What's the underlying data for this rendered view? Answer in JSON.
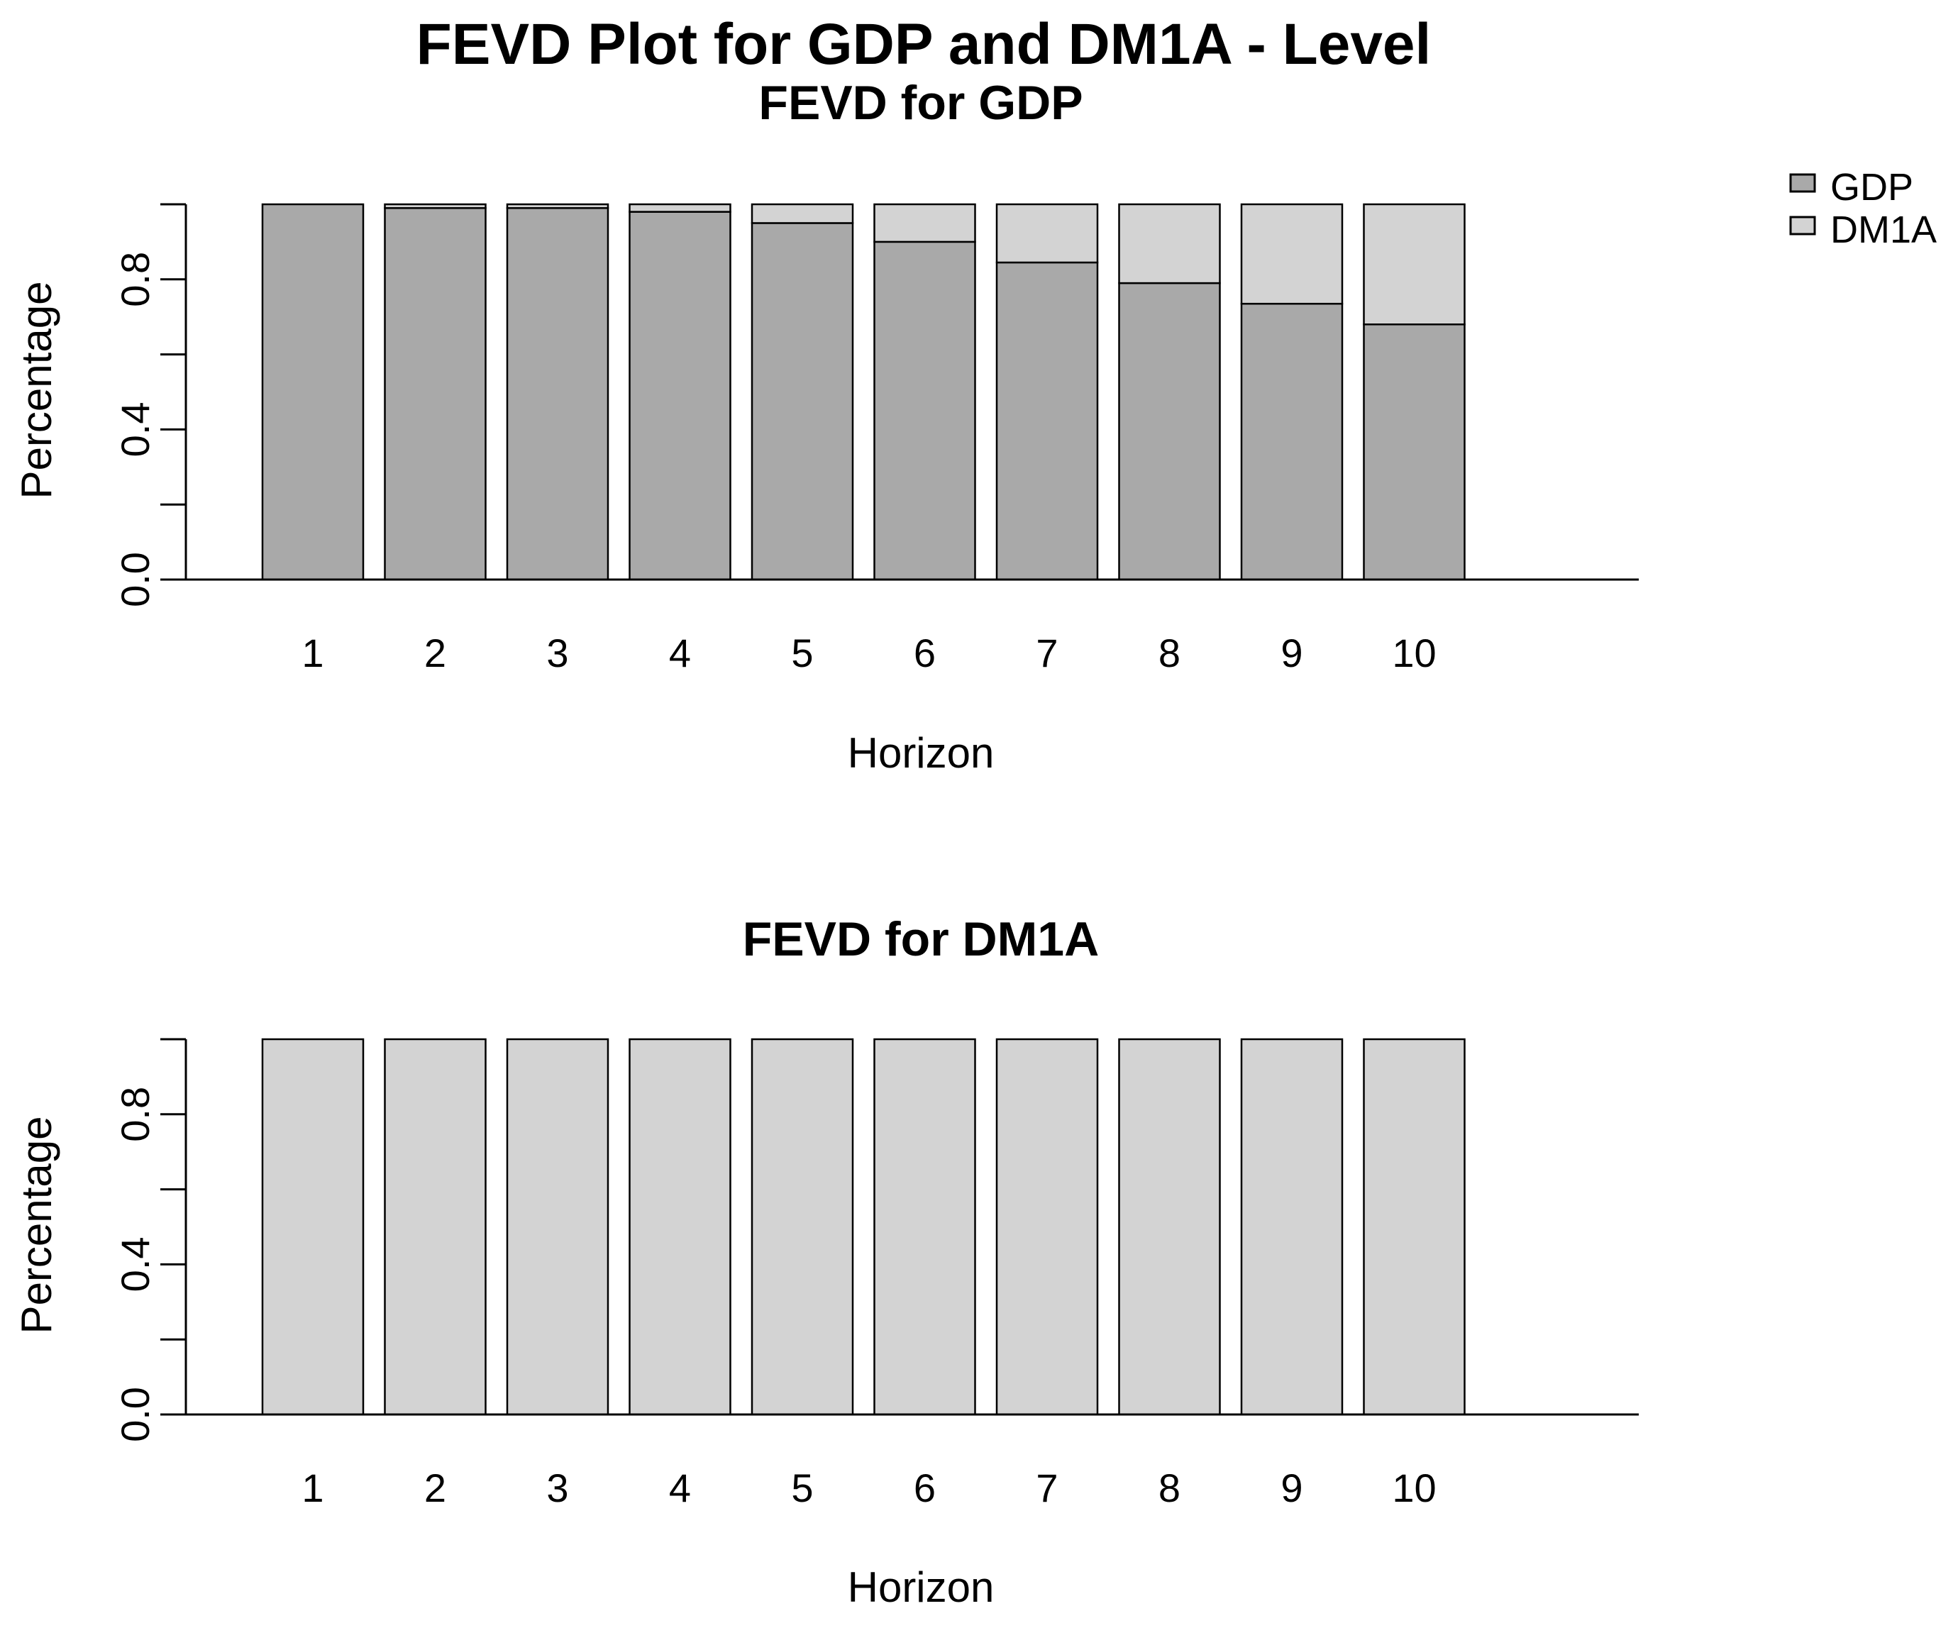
{
  "main_title": "FEVD Plot for GDP and DM1A - Level",
  "colors": {
    "GDP": "#a9a9a9",
    "DM1A": "#d3d3d3",
    "outline": "#000000"
  },
  "legend": {
    "placement": "top-right",
    "entries": [
      "GDP",
      "DM1A"
    ]
  },
  "chart_data": [
    {
      "type": "bar",
      "stacked": true,
      "title": "FEVD for GDP",
      "xlabel": "Horizon",
      "ylabel": "Percentage",
      "ylim": [
        0,
        1
      ],
      "yticks": [
        "0.0",
        "0.4",
        "0.8"
      ],
      "categories": [
        "1",
        "2",
        "3",
        "4",
        "5",
        "6",
        "7",
        "8",
        "9",
        "10"
      ],
      "series": [
        {
          "name": "GDP",
          "values": [
            1.0,
            0.99,
            0.99,
            0.98,
            0.95,
            0.9,
            0.845,
            0.79,
            0.735,
            0.68
          ]
        },
        {
          "name": "DM1A",
          "values": [
            0.0,
            0.01,
            0.01,
            0.02,
            0.05,
            0.1,
            0.155,
            0.21,
            0.265,
            0.32
          ]
        }
      ]
    },
    {
      "type": "bar",
      "stacked": true,
      "title": "FEVD for DM1A",
      "xlabel": "Horizon",
      "ylabel": "Percentage",
      "ylim": [
        0,
        1
      ],
      "yticks": [
        "0.0",
        "0.4",
        "0.8"
      ],
      "categories": [
        "1",
        "2",
        "3",
        "4",
        "5",
        "6",
        "7",
        "8",
        "9",
        "10"
      ],
      "series": [
        {
          "name": "GDP",
          "values": [
            0,
            0,
            0,
            0,
            0,
            0,
            0,
            0,
            0,
            0
          ]
        },
        {
          "name": "DM1A",
          "values": [
            1,
            1,
            1,
            1,
            1,
            1,
            1,
            1,
            1,
            1
          ]
        }
      ]
    }
  ]
}
